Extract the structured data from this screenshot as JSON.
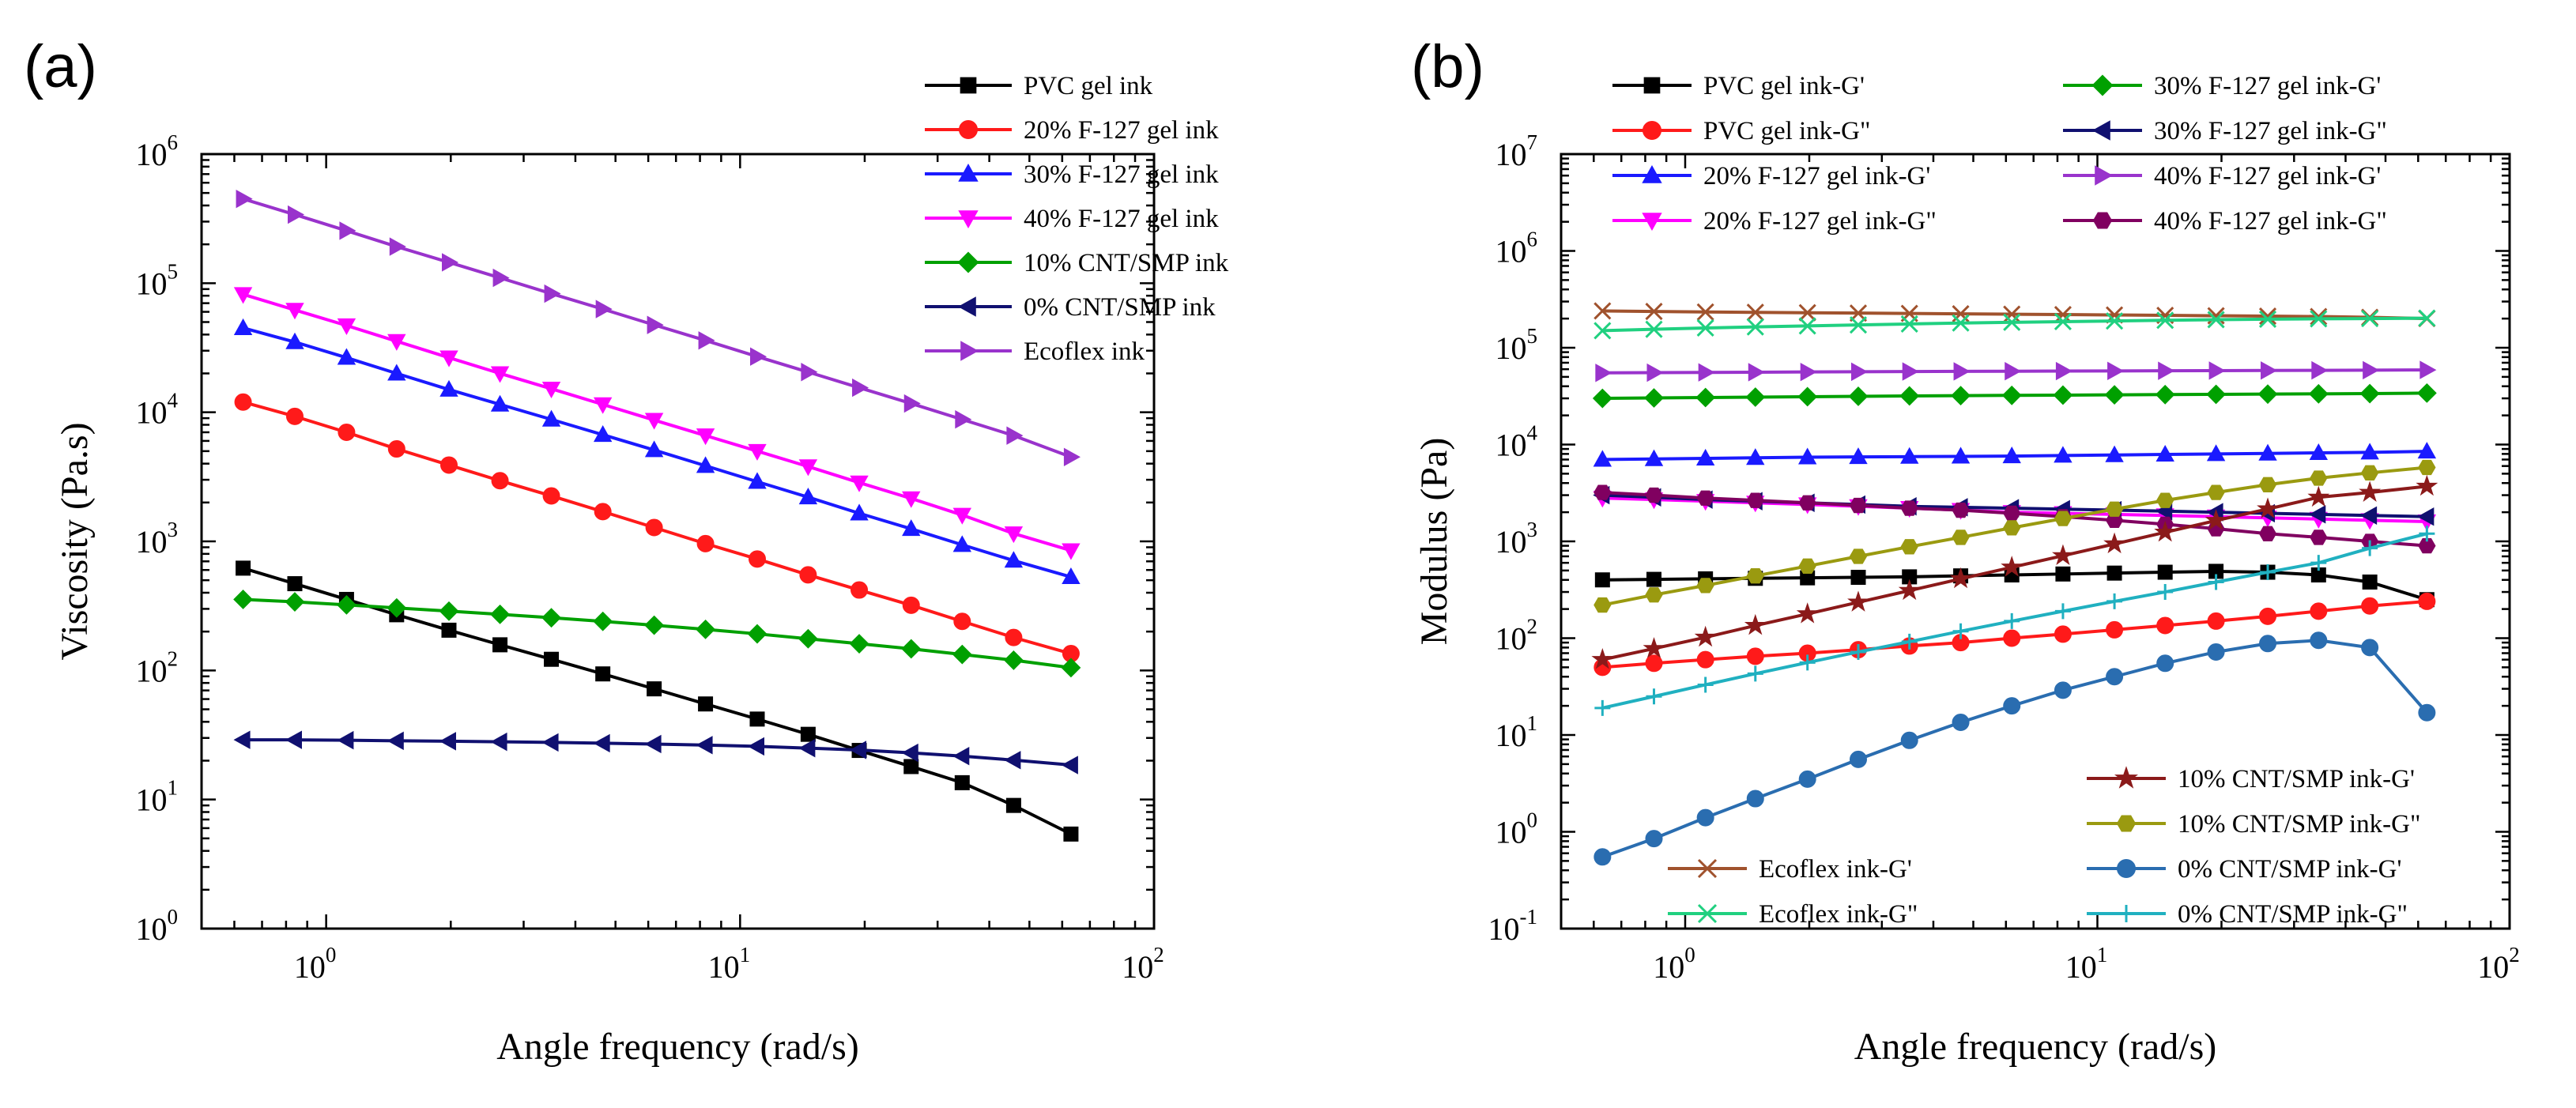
{
  "chart_data": [
    {
      "type": "line",
      "panel_label": "(a)",
      "title": "",
      "xlabel": "Angle frequency (rad/s)",
      "ylabel": "Viscosity (Pa.s)",
      "xscale": "log",
      "yscale": "log",
      "xlim": [
        0.5,
        100
      ],
      "ylim": [
        1,
        1000000
      ],
      "xticks": [
        {
          "base": "10",
          "exp": "0",
          "value": 1
        },
        {
          "base": "10",
          "exp": "1",
          "value": 10
        },
        {
          "base": "10",
          "exp": "2",
          "value": 100
        }
      ],
      "yticks": [
        {
          "base": "10",
          "exp": "0",
          "value": 1
        },
        {
          "base": "10",
          "exp": "1",
          "value": 10
        },
        {
          "base": "10",
          "exp": "2",
          "value": 100
        },
        {
          "base": "10",
          "exp": "3",
          "value": 1000
        },
        {
          "base": "10",
          "exp": "4",
          "value": 10000
        },
        {
          "base": "10",
          "exp": "5",
          "value": 100000
        },
        {
          "base": "10",
          "exp": "6",
          "value": 1000000
        }
      ],
      "grid": false,
      "legend_position": "top-right",
      "series": [
        {
          "name": "PVC gel ink",
          "color": "#000000",
          "marker": "square",
          "x": [
            0.63,
            0.84,
            1.12,
            1.48,
            1.98,
            2.63,
            3.5,
            4.66,
            6.2,
            8.25,
            11,
            14.6,
            19.4,
            25.9,
            34.4,
            45.8,
            63
          ],
          "y": [
            620,
            470,
            355,
            270,
            205,
            158,
            122,
            94,
            72,
            55,
            42,
            32,
            24,
            18,
            13.5,
            9,
            5.4
          ]
        },
        {
          "name": "20% F-127 gel ink",
          "color": "#ff1a1a",
          "marker": "circle",
          "x": [
            0.63,
            0.84,
            1.12,
            1.48,
            1.98,
            2.63,
            3.5,
            4.66,
            6.2,
            8.25,
            11,
            14.6,
            19.4,
            25.9,
            34.4,
            45.8,
            63
          ],
          "y": [
            12000,
            9300,
            7000,
            5200,
            3900,
            2950,
            2250,
            1700,
            1280,
            960,
            730,
            550,
            420,
            320,
            240,
            180,
            135
          ]
        },
        {
          "name": "30% F-127 gel ink",
          "color": "#1a1aff",
          "marker": "triangle-up",
          "x": [
            0.63,
            0.84,
            1.12,
            1.48,
            1.98,
            2.63,
            3.5,
            4.66,
            6.2,
            8.25,
            11,
            14.6,
            19.4,
            25.9,
            34.4,
            45.8,
            63
          ],
          "y": [
            45000,
            35000,
            26500,
            20000,
            15000,
            11500,
            8800,
            6700,
            5100,
            3850,
            2900,
            2200,
            1650,
            1250,
            940,
            710,
            530
          ]
        },
        {
          "name": "40% F-127 gel ink",
          "color": "#ff00ff",
          "marker": "triangle-down",
          "x": [
            0.63,
            0.84,
            1.12,
            1.48,
            1.98,
            2.63,
            3.5,
            4.66,
            6.2,
            8.25,
            11,
            14.6,
            19.4,
            25.9,
            34.4,
            45.8,
            63
          ],
          "y": [
            82000,
            62000,
            47000,
            35500,
            26500,
            20000,
            15200,
            11500,
            8700,
            6600,
            5000,
            3800,
            2850,
            2150,
            1600,
            1150,
            850
          ]
        },
        {
          "name": "10% CNT/SMP ink",
          "color": "#00a000",
          "marker": "diamond",
          "x": [
            0.63,
            0.84,
            1.12,
            1.48,
            1.98,
            2.63,
            3.5,
            4.66,
            6.2,
            8.25,
            11,
            14.6,
            19.4,
            25.9,
            34.4,
            45.8,
            63
          ],
          "y": [
            355,
            340,
            322,
            305,
            288,
            272,
            256,
            240,
            224,
            208,
            192,
            176,
            161,
            147,
            133,
            120,
            105
          ]
        },
        {
          "name": "0% CNT/SMP ink",
          "color": "#101070",
          "marker": "triangle-left",
          "x": [
            0.63,
            0.84,
            1.12,
            1.48,
            1.98,
            2.63,
            3.5,
            4.66,
            6.2,
            8.25,
            11,
            14.6,
            19.4,
            25.9,
            34.4,
            45.8,
            63
          ],
          "y": [
            29,
            29,
            28.8,
            28.5,
            28.3,
            28,
            27.7,
            27.3,
            26.9,
            26.4,
            25.8,
            25,
            24.2,
            23,
            21.7,
            20.2,
            18.5
          ]
        },
        {
          "name": "Ecoflex ink",
          "color": "#9933cc",
          "marker": "triangle-right",
          "x": [
            0.63,
            0.84,
            1.12,
            1.48,
            1.98,
            2.63,
            3.5,
            4.66,
            6.2,
            8.25,
            11,
            14.6,
            19.4,
            25.9,
            34.4,
            45.8,
            63
          ],
          "y": [
            450000,
            340000,
            255000,
            192000,
            145000,
            110000,
            83000,
            63000,
            47500,
            36000,
            27000,
            20500,
            15500,
            11700,
            8800,
            6600,
            4500
          ]
        }
      ]
    },
    {
      "type": "line",
      "panel_label": "(b)",
      "title": "",
      "xlabel": "Angle frequency (rad/s)",
      "ylabel": "Modulus (Pa)",
      "xscale": "log",
      "yscale": "log",
      "xlim": [
        0.5,
        100
      ],
      "ylim": [
        0.1,
        10000000
      ],
      "xticks": [
        {
          "base": "10",
          "exp": "0",
          "value": 1
        },
        {
          "base": "10",
          "exp": "1",
          "value": 10
        },
        {
          "base": "10",
          "exp": "2",
          "value": 100
        }
      ],
      "yticks": [
        {
          "base": "10",
          "exp": "-1",
          "value": 0.1
        },
        {
          "base": "10",
          "exp": "0",
          "value": 1
        },
        {
          "base": "10",
          "exp": "1",
          "value": 10
        },
        {
          "base": "10",
          "exp": "2",
          "value": 100
        },
        {
          "base": "10",
          "exp": "3",
          "value": 1000
        },
        {
          "base": "10",
          "exp": "4",
          "value": 10000
        },
        {
          "base": "10",
          "exp": "5",
          "value": 100000
        },
        {
          "base": "10",
          "exp": "6",
          "value": 1000000
        },
        {
          "base": "10",
          "exp": "7",
          "value": 10000000
        }
      ],
      "grid": false,
      "legend_position": "top and bottom-right",
      "series": [
        {
          "name": "PVC gel ink-G'",
          "color": "#000000",
          "marker": "square",
          "x": [
            0.63,
            0.84,
            1.12,
            1.48,
            1.98,
            2.63,
            3.5,
            4.66,
            6.2,
            8.25,
            11,
            14.6,
            19.4,
            25.9,
            34.4,
            45.8,
            63
          ],
          "y": [
            400,
            405,
            410,
            415,
            420,
            425,
            430,
            440,
            450,
            460,
            470,
            480,
            490,
            480,
            450,
            380,
            250
          ]
        },
        {
          "name": "PVC gel ink-G\"",
          "color": "#ff1a1a",
          "marker": "circle",
          "x": [
            0.63,
            0.84,
            1.12,
            1.48,
            1.98,
            2.63,
            3.5,
            4.66,
            6.2,
            8.25,
            11,
            14.6,
            19.4,
            25.9,
            34.4,
            45.8,
            63
          ],
          "y": [
            50,
            55,
            60,
            65,
            70,
            76,
            83,
            90,
            100,
            110,
            122,
            135,
            150,
            168,
            190,
            215,
            240
          ]
        },
        {
          "name": "20% F-127 gel ink-G'",
          "color": "#1a1aff",
          "marker": "triangle-up",
          "x": [
            0.63,
            0.84,
            1.12,
            1.48,
            1.98,
            2.63,
            3.5,
            4.66,
            6.2,
            8.25,
            11,
            14.6,
            19.4,
            25.9,
            34.4,
            45.8,
            63
          ],
          "y": [
            7000,
            7100,
            7200,
            7300,
            7400,
            7450,
            7500,
            7550,
            7600,
            7700,
            7800,
            7900,
            8000,
            8100,
            8200,
            8300,
            8500
          ]
        },
        {
          "name": "20% F-127 gel ink-G\"",
          "color": "#ff00ff",
          "marker": "triangle-down",
          "x": [
            0.63,
            0.84,
            1.12,
            1.48,
            1.98,
            2.63,
            3.5,
            4.66,
            6.2,
            8.25,
            11,
            14.6,
            19.4,
            25.9,
            34.4,
            45.8,
            63
          ],
          "y": [
            2800,
            2700,
            2600,
            2500,
            2400,
            2300,
            2200,
            2100,
            2000,
            1950,
            1900,
            1850,
            1800,
            1750,
            1700,
            1650,
            1600
          ]
        },
        {
          "name": "30% F-127 gel ink-G'",
          "color": "#00a000",
          "marker": "diamond",
          "x": [
            0.63,
            0.84,
            1.12,
            1.48,
            1.98,
            2.63,
            3.5,
            4.66,
            6.2,
            8.25,
            11,
            14.6,
            19.4,
            25.9,
            34.4,
            45.8,
            63
          ],
          "y": [
            30000,
            30300,
            30600,
            30900,
            31200,
            31500,
            31800,
            32000,
            32200,
            32400,
            32600,
            32800,
            33000,
            33200,
            33400,
            33600,
            34000
          ]
        },
        {
          "name": "30% F-127 gel ink-G\"",
          "color": "#101070",
          "marker": "triangle-left",
          "x": [
            0.63,
            0.84,
            1.12,
            1.48,
            1.98,
            2.63,
            3.5,
            4.66,
            6.2,
            8.25,
            11,
            14.6,
            19.4,
            25.9,
            34.4,
            45.8,
            63
          ],
          "y": [
            3000,
            2850,
            2700,
            2600,
            2500,
            2400,
            2300,
            2250,
            2200,
            2150,
            2100,
            2050,
            2000,
            1950,
            1900,
            1850,
            1800
          ]
        },
        {
          "name": "40% F-127 gel ink-G'",
          "color": "#9933cc",
          "marker": "triangle-right",
          "x": [
            0.63,
            0.84,
            1.12,
            1.48,
            1.98,
            2.63,
            3.5,
            4.66,
            6.2,
            8.25,
            11,
            14.6,
            19.4,
            25.9,
            34.4,
            45.8,
            63
          ],
          "y": [
            55000,
            55300,
            55600,
            55900,
            56200,
            56500,
            56800,
            57000,
            57200,
            57400,
            57600,
            57800,
            58000,
            58200,
            58400,
            58600,
            59000
          ]
        },
        {
          "name": "40% F-127 gel ink-G\"",
          "color": "#800060",
          "marker": "hexagon",
          "x": [
            0.63,
            0.84,
            1.12,
            1.48,
            1.98,
            2.63,
            3.5,
            4.66,
            6.2,
            8.25,
            11,
            14.6,
            19.4,
            25.9,
            34.4,
            45.8,
            63
          ],
          "y": [
            3200,
            3000,
            2800,
            2650,
            2500,
            2350,
            2200,
            2100,
            1950,
            1800,
            1650,
            1500,
            1350,
            1200,
            1100,
            1000,
            900
          ]
        },
        {
          "name": "10% CNT/SMP ink-G'",
          "color": "#8b1a1a",
          "marker": "star",
          "x": [
            0.63,
            0.84,
            1.12,
            1.48,
            1.98,
            2.63,
            3.5,
            4.66,
            6.2,
            8.25,
            11,
            14.6,
            19.4,
            25.9,
            34.4,
            45.8,
            63
          ],
          "y": [
            60,
            78,
            102,
            135,
            178,
            235,
            310,
            410,
            540,
            710,
            940,
            1240,
            1640,
            2160,
            2850,
            3200,
            3700
          ]
        },
        {
          "name": "10% CNT/SMP ink-G\"",
          "color": "#9a9a10",
          "marker": "hexagon",
          "x": [
            0.63,
            0.84,
            1.12,
            1.48,
            1.98,
            2.63,
            3.5,
            4.66,
            6.2,
            8.25,
            11,
            14.6,
            19.4,
            25.9,
            34.4,
            45.8,
            63
          ],
          "y": [
            220,
            280,
            350,
            440,
            555,
            700,
            880,
            1100,
            1380,
            1720,
            2150,
            2650,
            3200,
            3850,
            4500,
            5100,
            5800
          ]
        },
        {
          "name": "Ecoflex ink-G'",
          "color": "#a0522d",
          "marker": "x",
          "x": [
            0.63,
            0.84,
            1.12,
            1.48,
            1.98,
            2.63,
            3.5,
            4.66,
            6.2,
            8.25,
            11,
            14.6,
            19.4,
            25.9,
            34.4,
            45.8,
            63
          ],
          "y": [
            240000,
            237000,
            234000,
            232000,
            230000,
            228000,
            226000,
            224000,
            222000,
            220000,
            218000,
            216000,
            214000,
            212000,
            210000,
            206000,
            200000
          ]
        },
        {
          "name": "Ecoflex ink-G\"",
          "color": "#20d080",
          "marker": "x",
          "x": [
            0.63,
            0.84,
            1.12,
            1.48,
            1.98,
            2.63,
            3.5,
            4.66,
            6.2,
            8.25,
            11,
            14.6,
            19.4,
            25.9,
            34.4,
            45.8,
            63
          ],
          "y": [
            150000,
            155000,
            160000,
            164000,
            168000,
            172000,
            176000,
            180000,
            183000,
            186000,
            189000,
            192000,
            195000,
            197000,
            199000,
            200000,
            202000
          ]
        },
        {
          "name": "0% CNT/SMP ink-G'",
          "color": "#2a6db0",
          "marker": "circle",
          "x": [
            0.63,
            0.84,
            1.12,
            1.48,
            1.98,
            2.63,
            3.5,
            4.66,
            6.2,
            8.25,
            11,
            14.6,
            19.4,
            25.9,
            34.4,
            45.8,
            63
          ],
          "y": [
            0.55,
            0.85,
            1.4,
            2.2,
            3.5,
            5.6,
            8.8,
            13.5,
            20,
            29,
            40,
            55,
            72,
            88,
            95,
            80,
            17
          ]
        },
        {
          "name": "0% CNT/SMP ink-G\"",
          "color": "#20b0c0",
          "marker": "plus",
          "x": [
            0.63,
            0.84,
            1.12,
            1.48,
            1.98,
            2.63,
            3.5,
            4.66,
            6.2,
            8.25,
            11,
            14.6,
            19.4,
            25.9,
            34.4,
            45.8,
            63
          ],
          "y": [
            19,
            25,
            33,
            43,
            56,
            72,
            92,
            118,
            150,
            190,
            240,
            300,
            380,
            480,
            600,
            850,
            1200
          ]
        }
      ]
    }
  ]
}
